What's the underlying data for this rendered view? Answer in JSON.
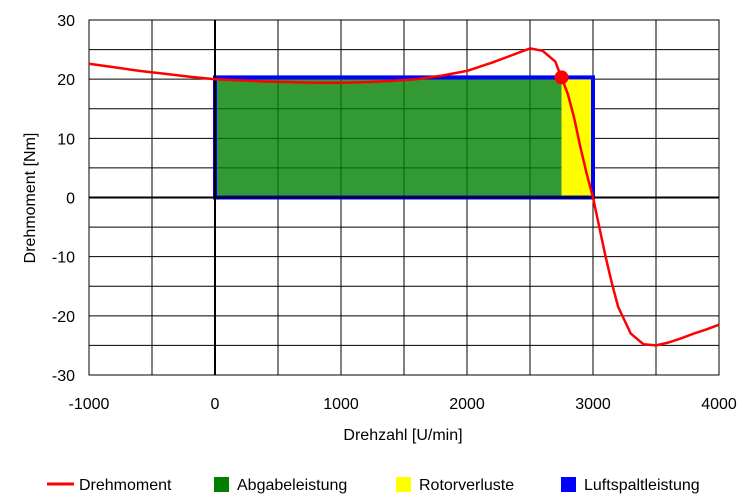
{
  "chart_data": {
    "type": "line",
    "title": "",
    "xlabel": "Drehzahl [U/min]",
    "ylabel": "Drehmoment [Nm]",
    "xlim": [
      -1000,
      4000
    ],
    "ylim": [
      -30,
      30
    ],
    "x_ticks": [
      -1000,
      0,
      1000,
      2000,
      3000,
      4000
    ],
    "y_ticks": [
      -30,
      -20,
      -10,
      0,
      10,
      20,
      30
    ],
    "grid": true,
    "legend_position": "bottom",
    "series": [
      {
        "name": "Drehmoment",
        "color": "#ff0000",
        "x": [
          -1000,
          -800,
          -600,
          -400,
          -200,
          0,
          200,
          400,
          600,
          800,
          1000,
          1200,
          1400,
          1600,
          1800,
          2000,
          2200,
          2350,
          2500,
          2600,
          2700,
          2750,
          2800,
          2850,
          2900,
          2950,
          3000,
          3050,
          3100,
          3150,
          3200,
          3300,
          3400,
          3500,
          3600,
          3700,
          3800,
          3900,
          4000
        ],
        "y": [
          22.6,
          22.0,
          21.4,
          20.9,
          20.4,
          20.0,
          19.8,
          19.6,
          19.5,
          19.4,
          19.4,
          19.5,
          19.7,
          20.0,
          20.6,
          21.4,
          22.8,
          24.0,
          25.2,
          24.8,
          23.0,
          20.3,
          17.5,
          13.5,
          8.5,
          4.0,
          0.0,
          -5.0,
          -10.0,
          -14.5,
          -18.5,
          -23.0,
          -24.8,
          -25.0,
          -24.5,
          -23.8,
          -23.0,
          -22.3,
          -21.5
        ]
      },
      {
        "name": "Abgabeleistung",
        "color": "#008000",
        "x": [
          0,
          2750
        ],
        "y": [
          0,
          20.3
        ]
      },
      {
        "name": "Rotorverluste",
        "color": "#ffff00",
        "x": [
          2750,
          3000
        ],
        "y": [
          0,
          20.3
        ]
      },
      {
        "name": "Luftspaltleistung",
        "color": "#0000ff",
        "x": [
          0,
          3000
        ],
        "y": [
          0,
          20.3
        ]
      }
    ],
    "operating_point": {
      "x": 2750,
      "y": 20.3,
      "color": "#ff0000"
    }
  }
}
